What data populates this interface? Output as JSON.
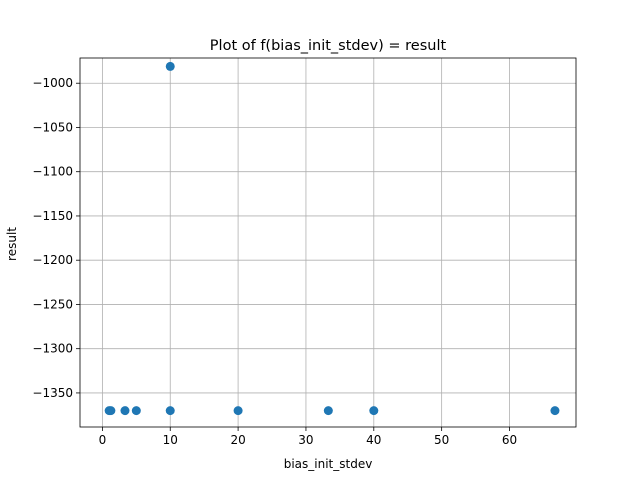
{
  "chart_data": {
    "type": "scatter",
    "title": "Plot of f(bias_init_stdev) = result",
    "xlabel": "bias_init_stdev",
    "ylabel": "result",
    "xlim": [
      -3.3,
      69.8
    ],
    "ylim": [
      -1388.5,
      -971.5
    ],
    "xticks": [
      0,
      10,
      20,
      30,
      40,
      50,
      60
    ],
    "yticks": [
      -1000,
      -1050,
      -1100,
      -1150,
      -1200,
      -1250,
      -1300,
      -1350
    ],
    "grid": true,
    "marker_color": "#1f77b4",
    "points": [
      {
        "x": 1,
        "y": -1370
      },
      {
        "x": 1.25,
        "y": -1370
      },
      {
        "x": 3.33,
        "y": -1370
      },
      {
        "x": 5,
        "y": -1370
      },
      {
        "x": 10,
        "y": -1370
      },
      {
        "x": 10,
        "y": -981
      },
      {
        "x": 20,
        "y": -1370
      },
      {
        "x": 33.3,
        "y": -1370
      },
      {
        "x": 40,
        "y": -1370
      },
      {
        "x": 66.7,
        "y": -1370
      }
    ]
  }
}
